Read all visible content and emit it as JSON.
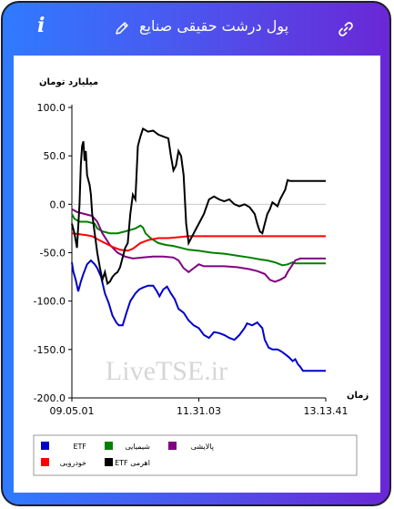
{
  "header": {
    "title": "پول درشت حقیقی صنایع",
    "info_glyph": "i",
    "icons": {
      "info": "info-icon",
      "edit": "pencil-icon",
      "link": "link-icon"
    }
  },
  "colors": {
    "gradient_start": "#2f7bff",
    "gradient_end": "#6a27d6",
    "etf": "#0000cc",
    "petrochemical": "#008000",
    "refining": "#800080",
    "automotive": "#ff0000",
    "leveraged_etf": "#000000"
  },
  "watermark": "LiveTSE.ir",
  "chart_data": {
    "type": "line",
    "ylabel": "میلیارد تومان",
    "xlabel": "زمان",
    "ylim": [
      -200,
      100
    ],
    "y_ticks": [
      "100.0",
      "50.0",
      "0.0",
      "-50.0",
      "-100.0",
      "-150.0",
      "-200.0"
    ],
    "x_ticks": [
      "09.05.01",
      "11.31.03",
      "13.13.41"
    ],
    "grid": false,
    "zero_line": true,
    "legend_position": "bottom",
    "series": [
      {
        "name": "ETF",
        "key": "etf",
        "points": [
          [
            0,
            -60
          ],
          [
            0.006,
            -70
          ],
          [
            0.015,
            -78
          ],
          [
            0.025,
            -90
          ],
          [
            0.035,
            -80
          ],
          [
            0.045,
            -72
          ],
          [
            0.06,
            -62
          ],
          [
            0.075,
            -58
          ],
          [
            0.09,
            -62
          ],
          [
            0.1,
            -66
          ],
          [
            0.115,
            -75
          ],
          [
            0.13,
            -92
          ],
          [
            0.145,
            -102
          ],
          [
            0.16,
            -115
          ],
          [
            0.175,
            -122
          ],
          [
            0.185,
            -125
          ],
          [
            0.2,
            -125
          ],
          [
            0.215,
            -112
          ],
          [
            0.23,
            -100
          ],
          [
            0.24,
            -96
          ],
          [
            0.25,
            -92
          ],
          [
            0.265,
            -88
          ],
          [
            0.28,
            -86
          ],
          [
            0.3,
            -84
          ],
          [
            0.32,
            -84
          ],
          [
            0.335,
            -90
          ],
          [
            0.345,
            -95
          ],
          [
            0.36,
            -88
          ],
          [
            0.375,
            -85
          ],
          [
            0.39,
            -92
          ],
          [
            0.405,
            -98
          ],
          [
            0.42,
            -108
          ],
          [
            0.44,
            -112
          ],
          [
            0.46,
            -120
          ],
          [
            0.48,
            -125
          ],
          [
            0.5,
            -128
          ],
          [
            0.52,
            -135
          ],
          [
            0.54,
            -138
          ],
          [
            0.56,
            -132
          ],
          [
            0.58,
            -133
          ],
          [
            0.6,
            -135
          ],
          [
            0.62,
            -138
          ],
          [
            0.64,
            -140
          ],
          [
            0.66,
            -135
          ],
          [
            0.68,
            -128
          ],
          [
            0.69,
            -123
          ],
          [
            0.71,
            -125
          ],
          [
            0.73,
            -122
          ],
          [
            0.75,
            -128
          ],
          [
            0.76,
            -140
          ],
          [
            0.775,
            -148
          ],
          [
            0.79,
            -150
          ],
          [
            0.81,
            -150
          ],
          [
            0.825,
            -152
          ],
          [
            0.84,
            -155
          ],
          [
            0.855,
            -158
          ],
          [
            0.87,
            -162
          ],
          [
            0.88,
            -160
          ],
          [
            0.89,
            -165
          ],
          [
            0.9,
            -168
          ],
          [
            0.91,
            -172
          ],
          [
            0.93,
            -172
          ],
          [
            0.96,
            -172
          ],
          [
            1.0,
            -172
          ]
        ]
      },
      {
        "name": "شیمیایی",
        "key": "petrochemical",
        "points": [
          [
            0,
            -10
          ],
          [
            0.01,
            -15
          ],
          [
            0.03,
            -18
          ],
          [
            0.06,
            -18
          ],
          [
            0.09,
            -20
          ],
          [
            0.1,
            -25
          ],
          [
            0.12,
            -28
          ],
          [
            0.15,
            -30
          ],
          [
            0.18,
            -30
          ],
          [
            0.21,
            -28
          ],
          [
            0.25,
            -25
          ],
          [
            0.27,
            -22
          ],
          [
            0.28,
            -24
          ],
          [
            0.29,
            -30
          ],
          [
            0.31,
            -35
          ],
          [
            0.34,
            -40
          ],
          [
            0.37,
            -42
          ],
          [
            0.4,
            -43
          ],
          [
            0.43,
            -45
          ],
          [
            0.46,
            -47
          ],
          [
            0.5,
            -48
          ],
          [
            0.55,
            -50
          ],
          [
            0.6,
            -51
          ],
          [
            0.65,
            -53
          ],
          [
            0.7,
            -55
          ],
          [
            0.74,
            -57
          ],
          [
            0.77,
            -58
          ],
          [
            0.8,
            -60
          ],
          [
            0.82,
            -62
          ],
          [
            0.83,
            -63
          ],
          [
            0.85,
            -62
          ],
          [
            0.87,
            -60
          ],
          [
            0.88,
            -61
          ],
          [
            0.9,
            -61
          ],
          [
            0.93,
            -61
          ],
          [
            0.96,
            -61
          ],
          [
            1.0,
            -61
          ]
        ]
      },
      {
        "name": "پالایشی",
        "key": "refining",
        "points": [
          [
            0,
            -5
          ],
          [
            0.02,
            -8
          ],
          [
            0.05,
            -10
          ],
          [
            0.08,
            -12
          ],
          [
            0.1,
            -18
          ],
          [
            0.12,
            -30
          ],
          [
            0.15,
            -42
          ],
          [
            0.18,
            -50
          ],
          [
            0.21,
            -54
          ],
          [
            0.24,
            -56
          ],
          [
            0.28,
            -55
          ],
          [
            0.32,
            -54
          ],
          [
            0.36,
            -54
          ],
          [
            0.4,
            -55
          ],
          [
            0.42,
            -58
          ],
          [
            0.44,
            -66
          ],
          [
            0.46,
            -70
          ],
          [
            0.48,
            -66
          ],
          [
            0.5,
            -62
          ],
          [
            0.52,
            -64
          ],
          [
            0.55,
            -64
          ],
          [
            0.6,
            -64
          ],
          [
            0.65,
            -65
          ],
          [
            0.7,
            -67
          ],
          [
            0.73,
            -69
          ],
          [
            0.76,
            -72
          ],
          [
            0.78,
            -78
          ],
          [
            0.8,
            -80
          ],
          [
            0.82,
            -78
          ],
          [
            0.84,
            -75
          ],
          [
            0.85,
            -70
          ],
          [
            0.87,
            -62
          ],
          [
            0.88,
            -58
          ],
          [
            0.9,
            -56
          ],
          [
            0.94,
            -56
          ],
          [
            1.0,
            -56
          ]
        ]
      },
      {
        "name": "خودرویی",
        "key": "automotive",
        "points": [
          [
            0,
            -30
          ],
          [
            0.03,
            -31
          ],
          [
            0.06,
            -32
          ],
          [
            0.08,
            -33
          ],
          [
            0.1,
            -36
          ],
          [
            0.13,
            -40
          ],
          [
            0.16,
            -44
          ],
          [
            0.19,
            -47
          ],
          [
            0.22,
            -48
          ],
          [
            0.24,
            -46
          ],
          [
            0.27,
            -40
          ],
          [
            0.3,
            -37
          ],
          [
            0.34,
            -35
          ],
          [
            0.38,
            -35
          ],
          [
            0.42,
            -34
          ],
          [
            0.46,
            -33
          ],
          [
            0.5,
            -33
          ],
          [
            0.6,
            -33
          ],
          [
            0.7,
            -33
          ],
          [
            0.8,
            -33
          ],
          [
            0.9,
            -33
          ],
          [
            1.0,
            -33
          ]
        ]
      },
      {
        "name": "ETF اهرمی",
        "key": "leveraged_etf",
        "points": [
          [
            0,
            -20
          ],
          [
            0.01,
            -30
          ],
          [
            0.02,
            -45
          ],
          [
            0.03,
            0
          ],
          [
            0.035,
            40
          ],
          [
            0.04,
            60
          ],
          [
            0.045,
            65
          ],
          [
            0.05,
            45
          ],
          [
            0.055,
            55
          ],
          [
            0.06,
            30
          ],
          [
            0.07,
            20
          ],
          [
            0.075,
            10
          ],
          [
            0.08,
            -10
          ],
          [
            0.09,
            -30
          ],
          [
            0.1,
            -50
          ],
          [
            0.11,
            -65
          ],
          [
            0.12,
            -78
          ],
          [
            0.13,
            -70
          ],
          [
            0.14,
            -82
          ],
          [
            0.15,
            -80
          ],
          [
            0.16,
            -75
          ],
          [
            0.17,
            -72
          ],
          [
            0.18,
            -70
          ],
          [
            0.19,
            -65
          ],
          [
            0.2,
            -55
          ],
          [
            0.21,
            -45
          ],
          [
            0.22,
            -40
          ],
          [
            0.23,
            -10
          ],
          [
            0.24,
            10
          ],
          [
            0.25,
            5
          ],
          [
            0.26,
            60
          ],
          [
            0.27,
            70
          ],
          [
            0.28,
            78
          ],
          [
            0.3,
            75
          ],
          [
            0.32,
            76
          ],
          [
            0.34,
            72
          ],
          [
            0.36,
            70
          ],
          [
            0.38,
            68
          ],
          [
            0.39,
            50
          ],
          [
            0.4,
            35
          ],
          [
            0.41,
            40
          ],
          [
            0.42,
            55
          ],
          [
            0.43,
            50
          ],
          [
            0.44,
            30
          ],
          [
            0.45,
            -20
          ],
          [
            0.46,
            -40
          ],
          [
            0.47,
            -35
          ],
          [
            0.48,
            -30
          ],
          [
            0.49,
            -25
          ],
          [
            0.5,
            -20
          ],
          [
            0.52,
            -10
          ],
          [
            0.54,
            5
          ],
          [
            0.56,
            8
          ],
          [
            0.58,
            5
          ],
          [
            0.6,
            3
          ],
          [
            0.62,
            5
          ],
          [
            0.64,
            0
          ],
          [
            0.66,
            -2
          ],
          [
            0.68,
            0
          ],
          [
            0.7,
            -3
          ],
          [
            0.72,
            -10
          ],
          [
            0.73,
            -20
          ],
          [
            0.74,
            -28
          ],
          [
            0.75,
            -30
          ],
          [
            0.76,
            -20
          ],
          [
            0.77,
            -10
          ],
          [
            0.78,
            -5
          ],
          [
            0.79,
            2
          ],
          [
            0.8,
            0
          ],
          [
            0.81,
            -2
          ],
          [
            0.82,
            5
          ],
          [
            0.83,
            10
          ],
          [
            0.84,
            15
          ],
          [
            0.85,
            25
          ],
          [
            0.86,
            24
          ],
          [
            0.9,
            24
          ],
          [
            0.95,
            24
          ],
          [
            1.0,
            24
          ]
        ]
      }
    ]
  }
}
